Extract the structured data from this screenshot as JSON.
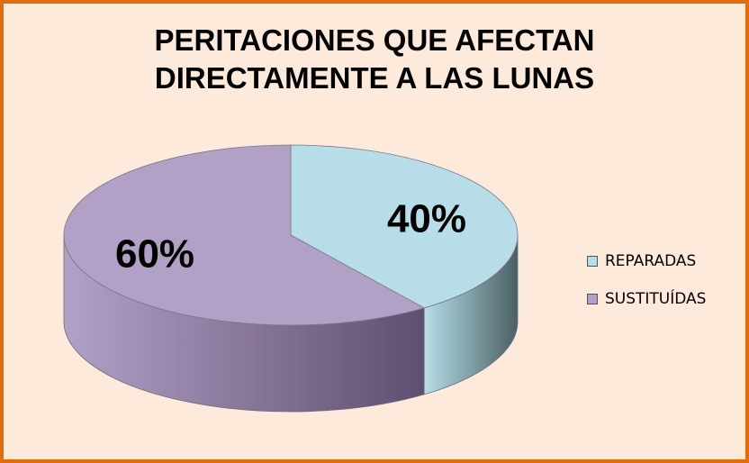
{
  "chart_data": {
    "type": "pie",
    "title_lines": [
      "PERITACIONES QUE AFECTAN",
      "DIRECTAMENTE A LAS LUNAS"
    ],
    "slices": [
      {
        "name": "REPARADAS",
        "value": 40,
        "label": "40%",
        "color": "#B7DEE8",
        "side_color": "#4A6064"
      },
      {
        "name": "SUSTITUÍDAS",
        "value": 60,
        "label": "60%",
        "color": "#B2A1C7",
        "side_color": "#5E4E70"
      }
    ],
    "legend_position": "right",
    "style": "3d"
  },
  "colors": {
    "background": "#FDEADA",
    "border": "#E36C0A"
  }
}
